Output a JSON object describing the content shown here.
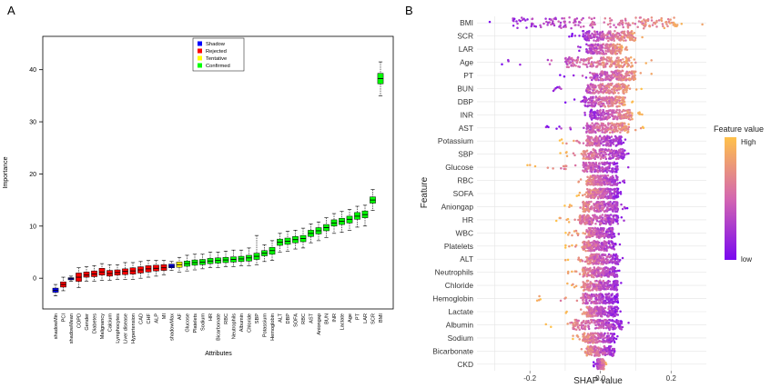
{
  "panels": [
    {
      "label": "A",
      "chart_data": {
        "type": "box",
        "title": "",
        "xlabel": "Attributes",
        "ylabel": "Importance",
        "ylim": [
          -4.5,
          45
        ],
        "yticks": [
          0,
          10,
          20,
          30,
          40
        ],
        "legend": {
          "position": "top-center",
          "entries": [
            {
              "label": "Shadow",
              "color": "#0000ff"
            },
            {
              "label": "Rejected",
              "color": "#ff0000"
            },
            {
              "label": "Tentative",
              "color": "#ffff00"
            },
            {
              "label": "Confirmed",
              "color": "#00ff00"
            }
          ]
        },
        "attributes": [
          {
            "name": "shadowMin",
            "status": "Shadow",
            "median": -2.3,
            "q1": -2.7,
            "q3": -1.9,
            "min": -3.4,
            "max": -1.2
          },
          {
            "name": "PCI",
            "status": "Rejected",
            "median": -1.2,
            "q1": -1.7,
            "q3": -0.7,
            "min": -2.4,
            "max": 0.2
          },
          {
            "name": "shadowMean",
            "status": "Shadow",
            "median": -0.1,
            "q1": -0.3,
            "q3": 0.1,
            "min": -0.6,
            "max": 0.4
          },
          {
            "name": "COPD",
            "status": "Rejected",
            "median": 0.2,
            "q1": -0.6,
            "q3": 1.0,
            "min": -1.8,
            "max": 2.0
          },
          {
            "name": "Gender",
            "status": "Rejected",
            "median": 0.6,
            "q1": 0.2,
            "q3": 1.2,
            "min": -0.6,
            "max": 2.2
          },
          {
            "name": "Diabetes",
            "status": "Rejected",
            "median": 0.8,
            "q1": 0.3,
            "q3": 1.4,
            "min": -0.6,
            "max": 2.4
          },
          {
            "name": "Malignancy",
            "status": "Rejected",
            "median": 1.2,
            "q1": 0.6,
            "q3": 1.9,
            "min": -0.4,
            "max": 2.8
          },
          {
            "name": "Calcium",
            "status": "Rejected",
            "median": 0.9,
            "q1": 0.4,
            "q3": 1.5,
            "min": -0.4,
            "max": 2.6
          },
          {
            "name": "Lymphocytes",
            "status": "Rejected",
            "median": 1.1,
            "q1": 0.6,
            "q3": 1.6,
            "min": -0.2,
            "max": 2.6
          },
          {
            "name": "Liver disease",
            "status": "Rejected",
            "median": 1.3,
            "q1": 0.7,
            "q3": 1.8,
            "min": -0.2,
            "max": 3.0
          },
          {
            "name": "Hypertension",
            "status": "Rejected",
            "median": 1.4,
            "q1": 0.8,
            "q3": 2.0,
            "min": -0.2,
            "max": 3.0
          },
          {
            "name": "CAD",
            "status": "Rejected",
            "median": 1.6,
            "q1": 1.0,
            "q3": 2.2,
            "min": 0.0,
            "max": 3.2
          },
          {
            "name": "CHF",
            "status": "Rejected",
            "median": 1.8,
            "q1": 1.2,
            "q3": 2.4,
            "min": 0.2,
            "max": 3.4
          },
          {
            "name": "ALP",
            "status": "Rejected",
            "median": 1.9,
            "q1": 1.4,
            "q3": 2.5,
            "min": 0.4,
            "max": 3.4
          },
          {
            "name": "MI",
            "status": "Rejected",
            "median": 2.0,
            "q1": 1.5,
            "q3": 2.6,
            "min": 0.6,
            "max": 3.4
          },
          {
            "name": "shadowMax",
            "status": "Shadow",
            "median": 2.3,
            "q1": 2.0,
            "q3": 2.7,
            "min": 1.5,
            "max": 3.2
          },
          {
            "name": "AF",
            "status": "Tentative",
            "median": 2.6,
            "q1": 2.1,
            "q3": 3.1,
            "min": 1.2,
            "max": 4.0
          },
          {
            "name": "Glucose",
            "status": "Confirmed",
            "median": 2.8,
            "q1": 2.3,
            "q3": 3.3,
            "min": 1.4,
            "max": 4.4
          },
          {
            "name": "Platelets",
            "status": "Confirmed",
            "median": 3.0,
            "q1": 2.5,
            "q3": 3.5,
            "min": 1.6,
            "max": 4.6
          },
          {
            "name": "Sodium",
            "status": "Confirmed",
            "median": 3.1,
            "q1": 2.6,
            "q3": 3.6,
            "min": 1.8,
            "max": 4.6
          },
          {
            "name": "HR",
            "status": "Confirmed",
            "median": 3.3,
            "q1": 2.8,
            "q3": 3.8,
            "min": 2.0,
            "max": 5.0
          },
          {
            "name": "Bicarbonate",
            "status": "Confirmed",
            "median": 3.4,
            "q1": 2.9,
            "q3": 3.9,
            "min": 2.0,
            "max": 5.0
          },
          {
            "name": "RBC",
            "status": "Confirmed",
            "median": 3.5,
            "q1": 3.0,
            "q3": 4.0,
            "min": 2.2,
            "max": 5.2
          },
          {
            "name": "Neutrophils",
            "status": "Confirmed",
            "median": 3.6,
            "q1": 3.1,
            "q3": 4.1,
            "min": 2.2,
            "max": 5.4
          },
          {
            "name": "Albumin",
            "status": "Confirmed",
            "median": 3.7,
            "q1": 3.2,
            "q3": 4.2,
            "min": 2.4,
            "max": 5.4
          },
          {
            "name": "Chloride",
            "status": "Confirmed",
            "median": 3.9,
            "q1": 3.3,
            "q3": 4.4,
            "min": 2.4,
            "max": 5.8
          },
          {
            "name": "SBP",
            "status": "Confirmed",
            "median": 4.2,
            "q1": 3.6,
            "q3": 4.8,
            "min": 2.6,
            "max": 8.2
          },
          {
            "name": "Potassium",
            "status": "Confirmed",
            "median": 4.8,
            "q1": 4.3,
            "q3": 5.3,
            "min": 3.2,
            "max": 6.4
          },
          {
            "name": "Hemoglobin",
            "status": "Confirmed",
            "median": 5.3,
            "q1": 4.6,
            "q3": 5.9,
            "min": 3.4,
            "max": 7.2
          },
          {
            "name": "ALT",
            "status": "Confirmed",
            "median": 6.9,
            "q1": 6.3,
            "q3": 7.5,
            "min": 5.0,
            "max": 8.6
          },
          {
            "name": "DBP",
            "status": "Confirmed",
            "median": 7.1,
            "q1": 6.5,
            "q3": 7.7,
            "min": 5.2,
            "max": 9.0
          },
          {
            "name": "SOFA",
            "status": "Confirmed",
            "median": 7.4,
            "q1": 6.8,
            "q3": 8.0,
            "min": 5.6,
            "max": 9.2
          },
          {
            "name": "RBC",
            "status": "Confirmed",
            "median": 7.6,
            "q1": 7.0,
            "q3": 8.2,
            "min": 5.8,
            "max": 9.6
          },
          {
            "name": "AST",
            "status": "Confirmed",
            "median": 8.6,
            "q1": 8.0,
            "q3": 9.2,
            "min": 6.8,
            "max": 10.4
          },
          {
            "name": "Aniongap",
            "status": "Confirmed",
            "median": 9.1,
            "q1": 8.5,
            "q3": 9.7,
            "min": 7.2,
            "max": 10.8
          },
          {
            "name": "BUN",
            "status": "Confirmed",
            "median": 9.7,
            "q1": 9.1,
            "q3": 10.3,
            "min": 7.8,
            "max": 11.6
          },
          {
            "name": "INR",
            "status": "Confirmed",
            "median": 10.6,
            "q1": 10.0,
            "q3": 11.2,
            "min": 8.6,
            "max": 12.4
          },
          {
            "name": "Lactate",
            "status": "Confirmed",
            "median": 10.9,
            "q1": 10.3,
            "q3": 11.5,
            "min": 8.8,
            "max": 12.8
          },
          {
            "name": "Age",
            "status": "Confirmed",
            "median": 11.3,
            "q1": 10.6,
            "q3": 11.9,
            "min": 9.2,
            "max": 13.2
          },
          {
            "name": "PT",
            "status": "Confirmed",
            "median": 11.9,
            "q1": 11.3,
            "q3": 12.6,
            "min": 9.8,
            "max": 13.8
          },
          {
            "name": "LAR",
            "status": "Confirmed",
            "median": 12.2,
            "q1": 11.6,
            "q3": 12.9,
            "min": 10.0,
            "max": 14.0
          },
          {
            "name": "SCR",
            "status": "Confirmed",
            "median": 15.0,
            "q1": 14.4,
            "q3": 15.6,
            "min": 13.0,
            "max": 17.0
          },
          {
            "name": "BMI",
            "status": "Confirmed",
            "median": 38.3,
            "q1": 37.3,
            "q3": 39.3,
            "min": 35.0,
            "max": 41.5
          }
        ]
      }
    },
    {
      "label": "B",
      "chart_data": {
        "type": "scatter",
        "subtype": "shap-beeswarm",
        "xlabel": "SHAP value",
        "ylabel": "Feature",
        "xlim": [
          -0.35,
          0.3
        ],
        "xticks": [
          -0.2,
          0.0,
          0.2
        ],
        "xtick_labels": [
          "-0.2",
          "0.0",
          "0.2"
        ],
        "grid": true,
        "colorbar": {
          "title": "Feature value",
          "high_label": "High",
          "low_label": "low",
          "high_color": "#ffc14a",
          "low_color": "#7a08f0"
        },
        "features": [
          {
            "name": "BMI",
            "range": [
              -0.33,
              0.29
            ],
            "core": [
              -0.25,
              0.22
            ]
          },
          {
            "name": "SCR",
            "range": [
              -0.1,
              0.13
            ],
            "core": [
              -0.05,
              0.1
            ]
          },
          {
            "name": "LAR",
            "range": [
              -0.08,
              0.08
            ],
            "core": [
              -0.04,
              0.06
            ]
          },
          {
            "name": "Age",
            "range": [
              -0.3,
              0.15
            ],
            "core": [
              -0.1,
              0.1
            ]
          },
          {
            "name": "PT",
            "range": [
              -0.12,
              0.15
            ],
            "core": [
              -0.03,
              0.1
            ]
          },
          {
            "name": "BUN",
            "range": [
              -0.16,
              0.12
            ],
            "core": [
              -0.04,
              0.08
            ]
          },
          {
            "name": "DBP",
            "range": [
              -0.1,
              0.1
            ],
            "core": [
              -0.05,
              0.07
            ]
          },
          {
            "name": "INR",
            "range": [
              -0.06,
              0.12
            ],
            "core": [
              -0.03,
              0.09
            ]
          },
          {
            "name": "AST",
            "range": [
              -0.16,
              0.13
            ],
            "core": [
              -0.04,
              0.08
            ]
          },
          {
            "name": "Potassium",
            "range": [
              -0.13,
              0.08
            ],
            "core": [
              -0.04,
              0.06
            ]
          },
          {
            "name": "SBP",
            "range": [
              -0.13,
              0.1
            ],
            "core": [
              -0.05,
              0.07
            ]
          },
          {
            "name": "Glucose",
            "range": [
              -0.21,
              0.08
            ],
            "core": [
              -0.05,
              0.05
            ]
          },
          {
            "name": "RBC",
            "range": [
              -0.08,
              0.07
            ],
            "core": [
              -0.04,
              0.05
            ]
          },
          {
            "name": "SOFA",
            "range": [
              -0.07,
              0.06
            ],
            "core": [
              -0.04,
              0.05
            ]
          },
          {
            "name": "Aniongap",
            "range": [
              -0.11,
              0.08
            ],
            "core": [
              -0.05,
              0.05
            ]
          },
          {
            "name": "HR",
            "range": [
              -0.13,
              0.07
            ],
            "core": [
              -0.06,
              0.05
            ]
          },
          {
            "name": "WBC",
            "range": [
              -0.1,
              0.06
            ],
            "core": [
              -0.04,
              0.04
            ]
          },
          {
            "name": "Platelets",
            "range": [
              -0.1,
              0.06
            ],
            "core": [
              -0.05,
              0.04
            ]
          },
          {
            "name": "ALT",
            "range": [
              -0.1,
              0.07
            ],
            "core": [
              -0.04,
              0.05
            ]
          },
          {
            "name": "Neutrophils",
            "range": [
              -0.1,
              0.06
            ],
            "core": [
              -0.05,
              0.05
            ]
          },
          {
            "name": "Chloride",
            "range": [
              -0.1,
              0.06
            ],
            "core": [
              -0.05,
              0.05
            ]
          },
          {
            "name": "Hemoglobin",
            "range": [
              -0.18,
              0.06
            ],
            "core": [
              -0.05,
              0.05
            ]
          },
          {
            "name": "Lactate",
            "range": [
              -0.1,
              0.06
            ],
            "core": [
              -0.04,
              0.05
            ]
          },
          {
            "name": "Albumin",
            "range": [
              -0.16,
              0.08
            ],
            "core": [
              -0.08,
              0.06
            ]
          },
          {
            "name": "Sodium",
            "range": [
              -0.08,
              0.05
            ],
            "core": [
              -0.05,
              0.04
            ]
          },
          {
            "name": "Bicarbonate",
            "range": [
              -0.07,
              0.05
            ],
            "core": [
              -0.04,
              0.04
            ]
          },
          {
            "name": "CKD",
            "range": [
              -0.02,
              0.02
            ],
            "core": [
              -0.01,
              0.01
            ]
          }
        ]
      }
    }
  ]
}
